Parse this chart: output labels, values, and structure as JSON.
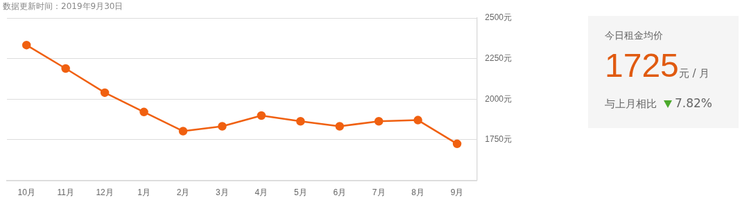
{
  "chart_data": [
    {
      "type": "line",
      "annotations": [
        "数据更新时间：2019年9月30日"
      ],
      "categories": [
        "10月",
        "11月",
        "12月",
        "1月",
        "2月",
        "3月",
        "4月",
        "5月",
        "6月",
        "7月",
        "8月",
        "9月"
      ],
      "series": [
        {
          "color": "#f06010",
          "values": [
            2333,
            2189,
            2040,
            1921,
            1803,
            1833,
            1899,
            1864,
            1833,
            1864,
            1871,
            1725
          ]
        }
      ],
      "ylim": [
        1500,
        2500
      ],
      "yticks": [
        {
          "value": 1500,
          "label": null
        },
        {
          "value": 1750,
          "label": "1750元"
        },
        {
          "value": 2000,
          "label": "2000元"
        },
        {
          "value": 2250,
          "label": "2250元"
        },
        {
          "value": 2500,
          "label": "2500元"
        }
      ],
      "grid": "y",
      "marker": "circle",
      "legend": false
    },
    {
      "type": "other",
      "title": "今日租金均价",
      "annotations": [
        "1725",
        "元 / 月",
        "与上月相比",
        "7.82%"
      ]
    }
  ]
}
